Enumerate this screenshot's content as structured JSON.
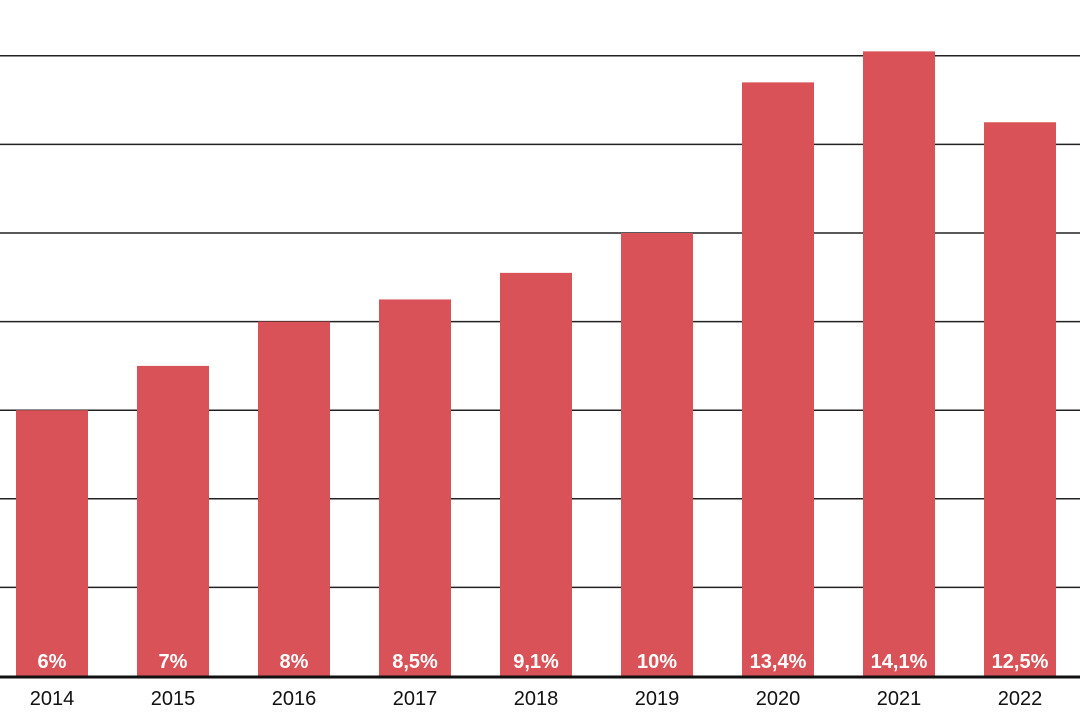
{
  "chart_data": {
    "type": "bar",
    "categories": [
      "2014",
      "2015",
      "2016",
      "2017",
      "2018",
      "2019",
      "2020",
      "2021",
      "2022"
    ],
    "values": [
      6,
      7,
      8,
      8.5,
      9.1,
      10,
      13.4,
      14.1,
      12.5
    ],
    "data_labels": [
      "6%",
      "7%",
      "8%",
      "8,5%",
      "9,1%",
      "10%",
      "13,4%",
      "14,1%",
      "12,5%"
    ],
    "title": "",
    "xlabel": "",
    "ylabel": "",
    "ylim": [
      0,
      14
    ],
    "grid": true,
    "colors": {
      "bar": "#d95257",
      "grid": "#222222",
      "axis": "#111111",
      "data_label": "#ffffff",
      "tick_label": "#111111"
    }
  }
}
